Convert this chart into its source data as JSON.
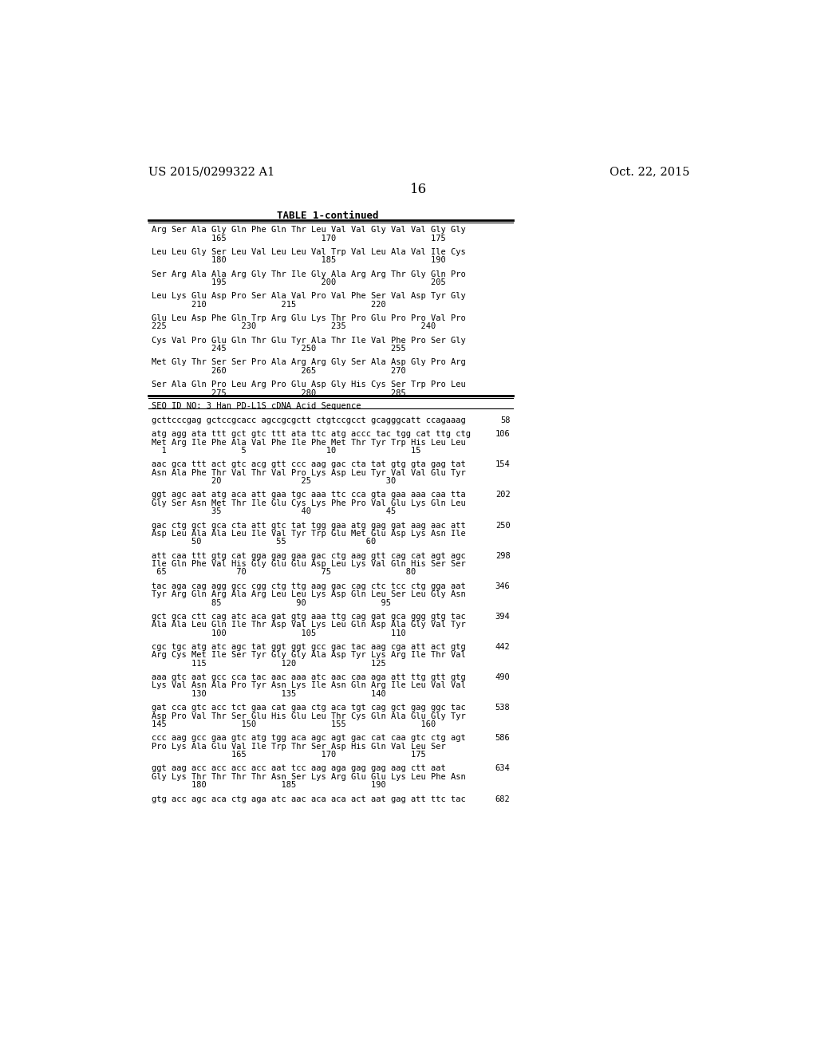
{
  "patent_number": "US 2015/0299322 A1",
  "date": "Oct. 22, 2015",
  "page_number": "16",
  "table_title": "TABLE 1-continued",
  "background_color": "#ffffff",
  "text_color": "#000000",
  "content": [
    {
      "type": "aa_line",
      "text": "Arg Ser Ala Gly Gln Phe Gln Thr Leu Val Val Gly Val Val Gly Gly"
    },
    {
      "type": "num_line",
      "text": "            165                   170                   175"
    },
    {
      "type": "blank"
    },
    {
      "type": "aa_line",
      "text": "Leu Leu Gly Ser Leu Val Leu Leu Val Trp Val Leu Ala Val Ile Cys"
    },
    {
      "type": "num_line",
      "text": "            180                   185                   190"
    },
    {
      "type": "blank"
    },
    {
      "type": "aa_line",
      "text": "Ser Arg Ala Ala Arg Gly Thr Ile Gly Ala Arg Arg Thr Gly Gln Pro"
    },
    {
      "type": "num_line",
      "text": "            195                   200                   205"
    },
    {
      "type": "blank"
    },
    {
      "type": "aa_line",
      "text": "Leu Lys Glu Asp Pro Ser Ala Val Pro Val Phe Ser Val Asp Tyr Gly"
    },
    {
      "type": "num_line",
      "text": "        210               215               220"
    },
    {
      "type": "blank"
    },
    {
      "type": "aa_line",
      "text": "Glu Leu Asp Phe Gln Trp Arg Glu Lys Thr Pro Glu Pro Pro Val Pro"
    },
    {
      "type": "num_line",
      "text": "225               230               235               240"
    },
    {
      "type": "blank"
    },
    {
      "type": "aa_line",
      "text": "Cys Val Pro Glu Gln Thr Glu Tyr Ala Thr Ile Val Phe Pro Ser Gly"
    },
    {
      "type": "num_line",
      "text": "            245               250               255"
    },
    {
      "type": "blank"
    },
    {
      "type": "aa_line",
      "text": "Met Gly Thr Ser Ser Pro Ala Arg Arg Gly Ser Ala Asp Gly Pro Arg"
    },
    {
      "type": "num_line",
      "text": "            260               265               270"
    },
    {
      "type": "blank"
    },
    {
      "type": "aa_line",
      "text": "Ser Ala Gln Pro Leu Arg Pro Glu Asp Gly His Cys Ser Trp Pro Leu"
    },
    {
      "type": "num_line",
      "text": "            275               280               285"
    },
    {
      "type": "thick_rule"
    },
    {
      "type": "seq_header",
      "text": "SEQ ID NO: 3 Han PD-L1S cDNA Acid Sequence"
    },
    {
      "type": "thin_rule"
    },
    {
      "type": "blank_small"
    },
    {
      "type": "dna_line",
      "text": "gcttcccgag gctccgcacc agccgcgctt ctgtccgcct gcagggcatt ccagaaag",
      "num": "58"
    },
    {
      "type": "blank"
    },
    {
      "type": "dna_line",
      "text": "atg agg ata ttt gct gtc ttt ata ttc atg accc tac tgg cat ttg ctg",
      "num": "106"
    },
    {
      "type": "aa_line",
      "text": "Met Arg Ile Phe Ala Val Phe Ile Phe Met Thr Tyr Trp His Leu Leu"
    },
    {
      "type": "num_line",
      "text": "  1               5                10               15"
    },
    {
      "type": "blank"
    },
    {
      "type": "dna_line",
      "text": "aac gca ttt act gtc acg gtt ccc aag gac cta tat gtg gta gag tat",
      "num": "154"
    },
    {
      "type": "aa_line",
      "text": "Asn Ala Phe Thr Val Thr Val Pro Lys Asp Leu Tyr Val Val Glu Tyr"
    },
    {
      "type": "num_line",
      "text": "            20                25               30"
    },
    {
      "type": "blank"
    },
    {
      "type": "dna_line",
      "text": "ggt agc aat atg aca att gaa tgc aaa ttc cca gta gaa aaa caa tta",
      "num": "202"
    },
    {
      "type": "aa_line",
      "text": "Gly Ser Asn Met Thr Ile Glu Cys Lys Phe Pro Val Glu Lys Gln Leu"
    },
    {
      "type": "num_line",
      "text": "            35                40               45"
    },
    {
      "type": "blank"
    },
    {
      "type": "dna_line",
      "text": "gac ctg gct gca cta att gtc tat tgg gaa atg gag gat aag aac att",
      "num": "250"
    },
    {
      "type": "aa_line",
      "text": "Asp Leu Ala Ala Leu Ile Val Tyr Trp Glu Met Glu Asp Lys Asn Ile"
    },
    {
      "type": "num_line",
      "text": "        50               55                60"
    },
    {
      "type": "blank"
    },
    {
      "type": "dna_line",
      "text": "att caa ttt gtg cat gga gag gaa gac ctg aag gtt cag cat agt agc",
      "num": "298"
    },
    {
      "type": "aa_line",
      "text": "Ile Gln Phe Val His Gly Glu Glu Asp Leu Lys Val Gln His Ser Ser"
    },
    {
      "type": "num_line",
      "text": " 65              70               75               80"
    },
    {
      "type": "blank"
    },
    {
      "type": "dna_line",
      "text": "tac aga cag agg gcc cgg ctg ttg aag gac cag ctc tcc ctg gga aat",
      "num": "346"
    },
    {
      "type": "aa_line",
      "text": "Tyr Arg Gln Arg Ala Arg Leu Leu Lys Asp Gln Leu Ser Leu Gly Asn"
    },
    {
      "type": "num_line",
      "text": "            85               90               95"
    },
    {
      "type": "blank"
    },
    {
      "type": "dna_line",
      "text": "gct gca ctt cag atc aca gat gtg aaa ttg cag gat gca ggg gtg tac",
      "num": "394"
    },
    {
      "type": "aa_line",
      "text": "Ala Ala Leu Gln Ile Thr Asp Val Lys Leu Gln Asp Ala Gly Val Tyr"
    },
    {
      "type": "num_line",
      "text": "            100               105               110"
    },
    {
      "type": "blank"
    },
    {
      "type": "dna_line",
      "text": "cgc tgc atg atc agc tat ggt ggt gcc gac tac aag cga att act gtg",
      "num": "442"
    },
    {
      "type": "aa_line",
      "text": "Arg Cys Met Ile Ser Tyr Gly Gly Ala Asp Tyr Lys Arg Ile Thr Val"
    },
    {
      "type": "num_line",
      "text": "        115               120               125"
    },
    {
      "type": "blank"
    },
    {
      "type": "dna_line",
      "text": "aaa gtc aat gcc cca tac aac aaa atc aac caa aga att ttg gtt gtg",
      "num": "490"
    },
    {
      "type": "aa_line",
      "text": "Lys Val Asn Ala Pro Tyr Asn Lys Ile Asn Gln Arg Ile Leu Val Val"
    },
    {
      "type": "num_line",
      "text": "        130               135               140"
    },
    {
      "type": "blank"
    },
    {
      "type": "dna_line",
      "text": "gat cca gtc acc tct gaa cat gaa ctg aca tgt cag gct gag ggc tac",
      "num": "538"
    },
    {
      "type": "aa_line",
      "text": "Asp Pro Val Thr Ser Glu His Glu Leu Thr Cys Gln Ala Glu Gly Tyr"
    },
    {
      "type": "num_line",
      "text": "145               150               155               160"
    },
    {
      "type": "blank"
    },
    {
      "type": "dna_line",
      "text": "ccc aag gcc gaa gtc atg tgg aca agc agt gac cat caa gtc ctg agt",
      "num": "586"
    },
    {
      "type": "aa_line",
      "text": "Pro Lys Ala Glu Val Ile Trp Thr Ser Asp His Gln Val Leu Ser"
    },
    {
      "type": "num_line",
      "text": "                165               170               175"
    },
    {
      "type": "blank"
    },
    {
      "type": "dna_line",
      "text": "ggt aag acc acc acc acc aat tcc aag aga gag gag aag ctt aat",
      "num": "634"
    },
    {
      "type": "aa_line",
      "text": "Gly Lys Thr Thr Thr Thr Asn Ser Lys Arg Glu Glu Lys Leu Phe Asn"
    },
    {
      "type": "num_line",
      "text": "        180               185               190"
    },
    {
      "type": "blank"
    },
    {
      "type": "dna_line",
      "text": "gtg acc agc aca ctg aga atc aac aca aca act aat gag att ttc tac",
      "num": "682"
    }
  ]
}
